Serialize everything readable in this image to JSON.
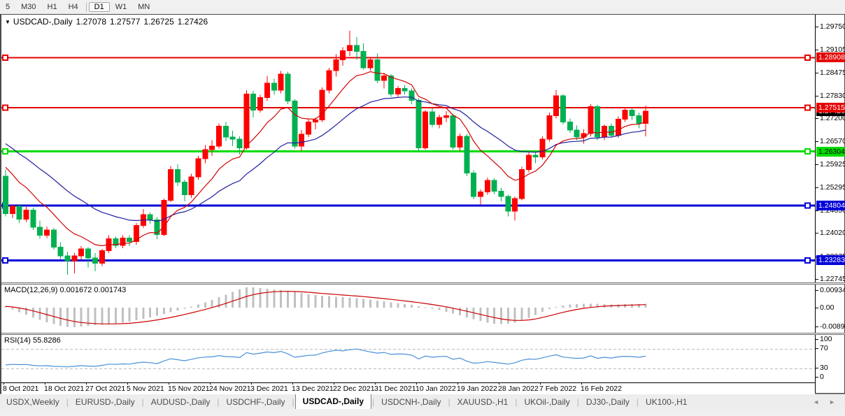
{
  "toolbar": {
    "periods": [
      "5",
      "M30",
      "H1",
      "H4",
      "D1",
      "W1",
      "MN"
    ],
    "active_period": "D1",
    "separator_after_index": 3
  },
  "chart": {
    "title": "USDCAD-,Daily",
    "open": "1.27078",
    "high": "1.27577",
    "low": "1.26725",
    "close": "1.27426"
  },
  "macd_panel": {
    "label": "MACD(12,26,9)",
    "values": "0.001672 0.001743",
    "scale_ticks": [
      "0.009345",
      "0.00",
      "-0.008902"
    ]
  },
  "rsi_panel": {
    "label": "RSI(14)",
    "value": "55.8286",
    "scale_ticks": [
      "100",
      "70",
      "30",
      "0"
    ]
  },
  "tabs": {
    "items": [
      "USDX,Weekly",
      "EURUSD-,Daily",
      "AUDUSD-,Daily",
      "USDCHF-,Daily",
      "USDCAD-,Daily",
      "USDCNH-,Daily",
      "XAUUSD-,H1",
      "UKOil-,Daily",
      "DJ30-,Daily",
      "UK100-,H1"
    ],
    "active": "USDCAD-,Daily",
    "scroll_left_arrow": "◄",
    "scroll_right_arrow": "►"
  },
  "colors": {
    "bull": "#ff0000",
    "bear": "#00b050",
    "level_red": "#e60000",
    "level_green": "#00dd00",
    "level_blue": "#0000d9",
    "badge_black": "#000000",
    "ma_fast": "#d40000",
    "ma_slow": "#1f1f9e",
    "macd_hist": "#c0c0c0",
    "macd_signal": "#cc0000",
    "rsi_line": "#4a90d9"
  },
  "chart_data": {
    "type": "candlestick",
    "symbol": "USDCAD-",
    "timeframe": "Daily",
    "title": "USDCAD-,Daily 1.27078 1.27577 1.26725 1.27426",
    "price_range": {
      "top": 1.2975,
      "bottom": 1.22745
    },
    "y_axis_ticks": [
      "1.29750",
      "1.29105",
      "1.28475",
      "1.27830",
      "1.27200",
      "1.26570",
      "1.25925",
      "1.25295",
      "1.24650",
      "1.24020",
      "1.23375",
      "1.22745"
    ],
    "x_labels": [
      "8 Oct 2021",
      "18 Oct 2021",
      "27 Oct 2021",
      "5 Nov 2021",
      "15 Nov 2021",
      "24 Nov 2021",
      "3 Dec 2021",
      "13 Dec 2021",
      "22 Dec 2021",
      "31 Dec 2021",
      "10 Jan 2022",
      "19 Jan 2022",
      "28 Jan 2022",
      "7 Feb 2022",
      "16 Feb 2022"
    ],
    "levels": [
      {
        "price": 1.28908,
        "label": "1.28908",
        "color": "#e60000",
        "text": "#ffffff",
        "width": 2
      },
      {
        "price": 1.27515,
        "label": "1.27515",
        "color": "#e60000",
        "text": "#ffffff",
        "width": 2
      },
      {
        "price": 1.26304,
        "label": "1.26304",
        "color": "#00dd00",
        "text": "#000000",
        "width": 3
      },
      {
        "price": 1.24804,
        "label": "1.24804",
        "color": "#0000d9",
        "text": "#ffffff",
        "width": 3
      },
      {
        "price": 1.23283,
        "label": "1.23283",
        "color": "#0000d9",
        "text": "#ffffff",
        "width": 3
      }
    ],
    "current_price": {
      "value": 1.27426,
      "label": "1.27426"
    },
    "ma_fast": {
      "period": 10,
      "seed": 1.2615
    },
    "ma_slow": {
      "period": 25,
      "seed": 1.2668
    },
    "candles": [
      [
        1.2562,
        1.258,
        1.245,
        1.2458
      ],
      [
        1.2458,
        1.2482,
        1.2445,
        1.2478
      ],
      [
        1.2478,
        1.2484,
        1.2432,
        1.2442
      ],
      [
        1.2442,
        1.2476,
        1.2435,
        1.2468
      ],
      [
        1.2468,
        1.2474,
        1.2412,
        1.242
      ],
      [
        1.242,
        1.2438,
        1.2388,
        1.2398
      ],
      [
        1.2398,
        1.2422,
        1.239,
        1.2412
      ],
      [
        1.2412,
        1.2418,
        1.2358,
        1.2365
      ],
      [
        1.2365,
        1.2378,
        1.2332,
        1.234
      ],
      [
        1.234,
        1.2352,
        1.2288,
        1.2327
      ],
      [
        1.2327,
        1.2348,
        1.2292,
        1.234
      ],
      [
        1.234,
        1.2368,
        1.233,
        1.236
      ],
      [
        1.236,
        1.2365,
        1.2308,
        1.2335
      ],
      [
        1.2335,
        1.2348,
        1.2298,
        1.232
      ],
      [
        1.232,
        1.236,
        1.2312,
        1.2355
      ],
      [
        1.2355,
        1.2398,
        1.2348,
        1.2388
      ],
      [
        1.2388,
        1.2395,
        1.2362,
        1.237
      ],
      [
        1.237,
        1.2398,
        1.2362,
        1.239
      ],
      [
        1.239,
        1.2398,
        1.2368,
        1.238
      ],
      [
        1.238,
        1.2432,
        1.2372,
        1.2425
      ],
      [
        1.2425,
        1.247,
        1.2418,
        1.2455
      ],
      [
        1.2455,
        1.2462,
        1.243,
        1.244
      ],
      [
        1.244,
        1.2448,
        1.2387,
        1.24
      ],
      [
        1.24,
        1.25,
        1.2395,
        1.2495
      ],
      [
        1.2495,
        1.259,
        1.249,
        1.258
      ],
      [
        1.258,
        1.2595,
        1.2535,
        1.2545
      ],
      [
        1.2545,
        1.2552,
        1.2492,
        1.251
      ],
      [
        1.251,
        1.2568,
        1.2502,
        1.256
      ],
      [
        1.256,
        1.2618,
        1.2552,
        1.261
      ],
      [
        1.261,
        1.2648,
        1.2598,
        1.2635
      ],
      [
        1.2635,
        1.2662,
        1.2618,
        1.2645
      ],
      [
        1.2645,
        1.2708,
        1.2638,
        1.27
      ],
      [
        1.27,
        1.2712,
        1.266,
        1.267
      ],
      [
        1.267,
        1.2688,
        1.2645,
        1.2665
      ],
      [
        1.2665,
        1.2672,
        1.2622,
        1.264
      ],
      [
        1.264,
        1.28,
        1.2635,
        1.279
      ],
      [
        1.279,
        1.2798,
        1.2725,
        1.2745
      ],
      [
        1.2745,
        1.2788,
        1.2738,
        1.278
      ],
      [
        1.278,
        1.284,
        1.277,
        1.282
      ],
      [
        1.282,
        1.2832,
        1.2788,
        1.28
      ],
      [
        1.28,
        1.2854,
        1.2792,
        1.2845
      ],
      [
        1.2845,
        1.2852,
        1.2762,
        1.277
      ],
      [
        1.277,
        1.2775,
        1.2638,
        1.2645
      ],
      [
        1.2645,
        1.269,
        1.2632,
        1.2678
      ],
      [
        1.2678,
        1.272,
        1.267,
        1.2712
      ],
      [
        1.2712,
        1.2725,
        1.2692,
        1.2718
      ],
      [
        1.2718,
        1.2808,
        1.2712,
        1.28
      ],
      [
        1.28,
        1.2862,
        1.2792,
        1.2855
      ],
      [
        1.2855,
        1.29,
        1.2838,
        1.2885
      ],
      [
        1.2885,
        1.292,
        1.2868,
        1.291
      ],
      [
        1.291,
        1.2965,
        1.2895,
        1.2925
      ],
      [
        1.2925,
        1.2948,
        1.2885,
        1.2908
      ],
      [
        1.2908,
        1.293,
        1.2858,
        1.2862
      ],
      [
        1.2862,
        1.2892,
        1.2855,
        1.2885
      ],
      [
        1.2885,
        1.2902,
        1.282,
        1.2828
      ],
      [
        1.2828,
        1.2848,
        1.2805,
        1.284
      ],
      [
        1.284,
        1.2845,
        1.2782,
        1.279
      ],
      [
        1.279,
        1.2812,
        1.2782,
        1.2805
      ],
      [
        1.2805,
        1.2815,
        1.2788,
        1.2798
      ],
      [
        1.2798,
        1.2805,
        1.2762,
        1.2772
      ],
      [
        1.2772,
        1.2778,
        1.2632,
        1.264
      ],
      [
        1.264,
        1.2745,
        1.2635,
        1.274
      ],
      [
        1.274,
        1.275,
        1.2698,
        1.2705
      ],
      [
        1.2705,
        1.2732,
        1.2695,
        1.2725
      ],
      [
        1.2725,
        1.2742,
        1.2712,
        1.273
      ],
      [
        1.273,
        1.2735,
        1.2635,
        1.2642
      ],
      [
        1.2642,
        1.268,
        1.2632,
        1.2672
      ],
      [
        1.2672,
        1.2678,
        1.2562,
        1.257
      ],
      [
        1.257,
        1.2578,
        1.2498,
        1.2505
      ],
      [
        1.2505,
        1.2525,
        1.2482,
        1.2518
      ],
      [
        1.2518,
        1.2558,
        1.251,
        1.255
      ],
      [
        1.255,
        1.2556,
        1.2512,
        1.252
      ],
      [
        1.252,
        1.253,
        1.2492,
        1.2505
      ],
      [
        1.2505,
        1.251,
        1.245,
        1.2465
      ],
      [
        1.2465,
        1.2505,
        1.2438,
        1.25
      ],
      [
        1.25,
        1.2588,
        1.2495,
        1.258
      ],
      [
        1.258,
        1.2628,
        1.2572,
        1.262
      ],
      [
        1.262,
        1.2632,
        1.2598,
        1.2615
      ],
      [
        1.2615,
        1.2672,
        1.2608,
        1.2665
      ],
      [
        1.2665,
        1.2738,
        1.2658,
        1.273
      ],
      [
        1.273,
        1.28,
        1.2722,
        1.2785
      ],
      [
        1.2785,
        1.279,
        1.2705,
        1.2712
      ],
      [
        1.2712,
        1.2722,
        1.2682,
        1.269
      ],
      [
        1.269,
        1.2702,
        1.2662,
        1.267
      ],
      [
        1.267,
        1.2692,
        1.2652,
        1.268
      ],
      [
        1.268,
        1.2762,
        1.2672,
        1.2755
      ],
      [
        1.2755,
        1.276,
        1.2662,
        1.267
      ],
      [
        1.267,
        1.2705,
        1.2662,
        1.27
      ],
      [
        1.27,
        1.2708,
        1.2668,
        1.2675
      ],
      [
        1.2675,
        1.2728,
        1.2668,
        1.272
      ],
      [
        1.272,
        1.2752,
        1.2712,
        1.2745
      ],
      [
        1.2745,
        1.275,
        1.2718,
        1.273
      ],
      [
        1.273,
        1.2738,
        1.2695,
        1.2708
      ],
      [
        1.27078,
        1.27577,
        1.26725,
        1.27426
      ]
    ],
    "macd": {
      "histogram": [
        0.0006,
        -0.0008,
        -0.002,
        -0.0032,
        -0.0045,
        -0.0056,
        -0.0066,
        -0.0075,
        -0.0082,
        -0.0088,
        -0.0089,
        -0.0086,
        -0.0083,
        -0.008,
        -0.0078,
        -0.0076,
        -0.0073,
        -0.0069,
        -0.0064,
        -0.0058,
        -0.0051,
        -0.0044,
        -0.0037,
        -0.0029,
        -0.002,
        -0.0012,
        -0.0004,
        0.0005,
        0.0014,
        0.0024,
        0.0035,
        0.0047,
        0.0059,
        0.0071,
        0.0083,
        0.0093,
        0.0092,
        0.0089,
        0.0086,
        0.0083,
        0.008,
        0.0076,
        0.0071,
        0.0066,
        0.0061,
        0.0057,
        0.0054,
        0.0052,
        0.005,
        0.0048,
        0.0046,
        0.0043,
        0.004,
        0.0036,
        0.0032,
        0.0028,
        0.0024,
        0.002,
        0.0016,
        0.0012,
        0.0007,
        0.0002,
        -0.0004,
        -0.0011,
        -0.0019,
        -0.0027,
        -0.0035,
        -0.0044,
        -0.0053,
        -0.0061,
        -0.0068,
        -0.0073,
        -0.0075,
        -0.0073,
        -0.0068,
        -0.0059,
        -0.0047,
        -0.0033,
        -0.0019,
        -0.0007,
        0.0003,
        0.001,
        0.0014,
        0.0016,
        0.0017,
        0.0018,
        0.0017,
        0.0016,
        0.0015,
        0.0015,
        0.0016,
        0.0016,
        0.0016,
        0.001672
      ],
      "current_macd": 0.001672,
      "current_signal": 0.001743,
      "scale": {
        "top": 0.009345,
        "zero": 0.0,
        "bottom": -0.008902
      }
    },
    "rsi": {
      "values": [
        38,
        39,
        38.5,
        39,
        37,
        36,
        36.5,
        35,
        34.5,
        34,
        35,
        36.5,
        35.5,
        35,
        37,
        39.5,
        39,
        40,
        39.5,
        42,
        43.5,
        42.5,
        40.5,
        46,
        50.5,
        48.5,
        46.5,
        49.5,
        52.5,
        54,
        54.5,
        57,
        55,
        54.5,
        53,
        63,
        60,
        62,
        64.5,
        63,
        65.5,
        60.5,
        53.5,
        55.5,
        57.5,
        58,
        62.5,
        65.5,
        68,
        66.5,
        69,
        70.5,
        67.5,
        64.5,
        62,
        63.5,
        59.5,
        60.5,
        60,
        58,
        50,
        56,
        53.5,
        55,
        55.5,
        49.5,
        52,
        45.5,
        41.5,
        42.5,
        44.5,
        43,
        41.5,
        39.5,
        42.5,
        47.5,
        50,
        49.5,
        52.5,
        56,
        58.5,
        54,
        52.5,
        51.5,
        52,
        56.5,
        51.5,
        53.5,
        52,
        54.5,
        55.5,
        55,
        53.5,
        55.83
      ],
      "current": 55.8286,
      "overbought": 70,
      "oversold": 30
    }
  }
}
